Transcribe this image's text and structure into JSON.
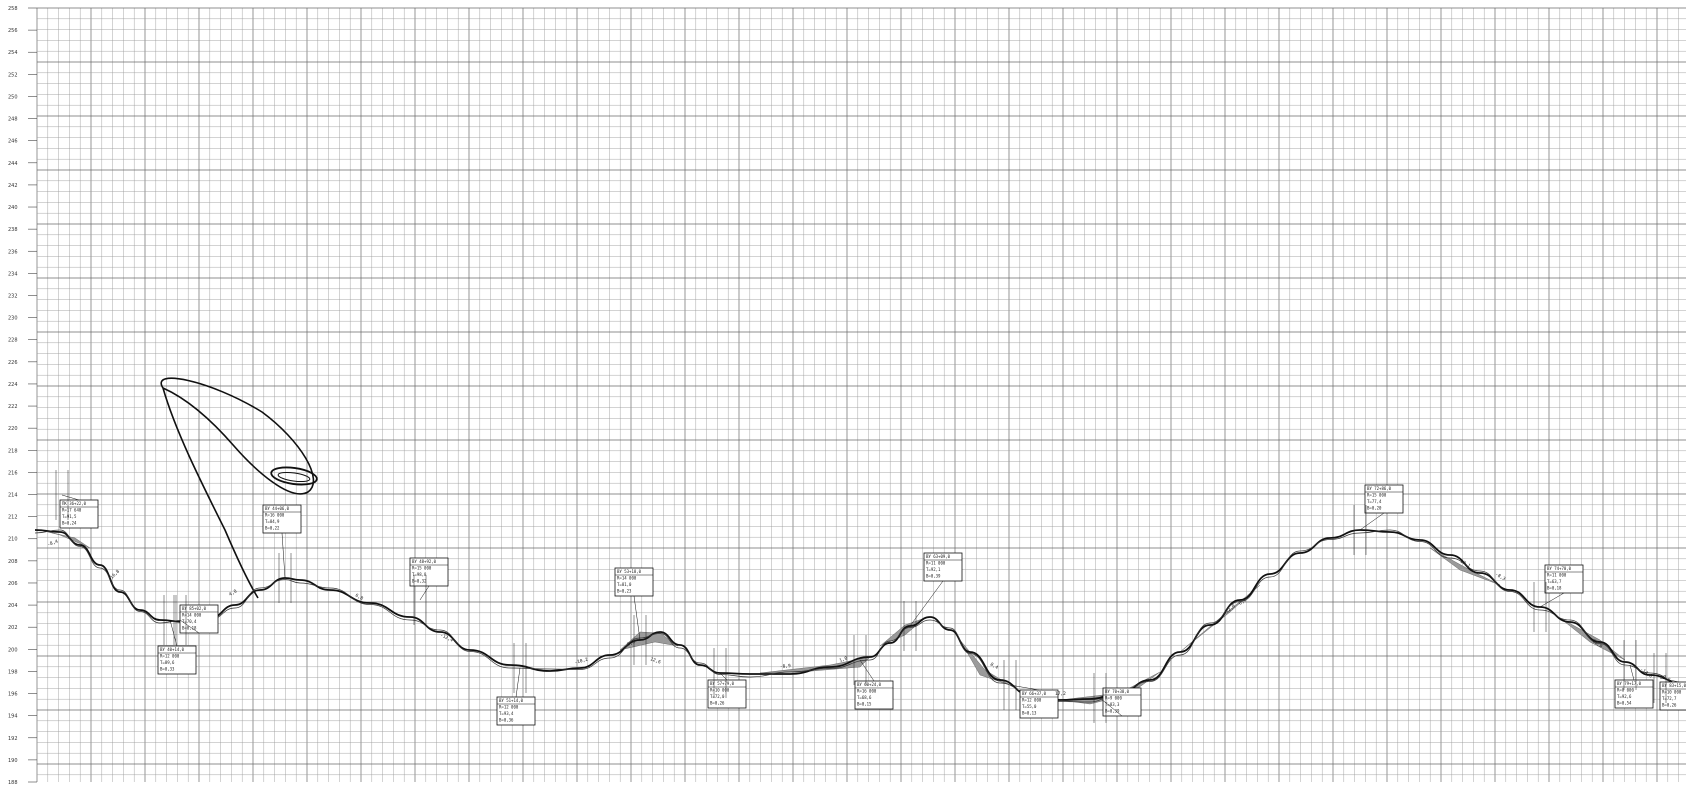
{
  "sheet": {
    "grid": true,
    "y_axis_range": [
      188,
      258
    ]
  },
  "y_ticks": [
    "258",
    "256",
    "254",
    "252",
    "250",
    "248",
    "246",
    "244",
    "242",
    "240",
    "238",
    "236",
    "234",
    "232",
    "230",
    "228",
    "226",
    "224",
    "222",
    "220",
    "218",
    "216",
    "214",
    "212",
    "210",
    "208",
    "206",
    "204",
    "202",
    "200",
    "198",
    "196",
    "194",
    "192",
    "190",
    "188"
  ],
  "profile": {
    "line_color": "#111111",
    "fill_color": "#9a9a9a"
  },
  "vertical_curves": [
    {
      "box": [
        "ПК 36+22,0",
        "R=17 640",
        "T=91,5",
        "B=0,24"
      ]
    },
    {
      "box": [
        "ВУ 40+14,0",
        "R=12 000",
        "T=89,6",
        "B=0,33"
      ]
    },
    {
      "box": [
        "ВУ 44+06,0",
        "R=16 000",
        "T=84,9",
        "B=0,22"
      ]
    },
    {
      "box": [
        "ВУ 48+92,0",
        "R=15 000",
        "T=98,8",
        "B=0,32"
      ]
    },
    {
      "box": [
        "ВУ 51+14,0",
        "R=12 000",
        "T=93,4",
        "B=0,36"
      ]
    },
    {
      "box": [
        "ВУ 53+18,0",
        "R=14 000",
        "T=81,0",
        "B=0,23"
      ]
    },
    {
      "box": [
        "ВУ 57+79,0",
        "R=10 000",
        "T=72,0",
        "B=0,26"
      ]
    },
    {
      "box": [
        "ВУ 60+24,0",
        "R=16 000",
        "T=68,6",
        "B=0,15"
      ]
    },
    {
      "box": [
        "ВУ 63+09,0",
        "R=11 000",
        "T=92,1",
        "B=0,39"
      ]
    },
    {
      "box": [
        "ВУ 66+37,0",
        "R=12 000",
        "T=55,0",
        "B=0,13"
      ]
    },
    {
      "box": [
        "ВУ 70+38,0",
        "R=9 000",
        "T=83,3",
        "B=0,39"
      ]
    },
    {
      "box": [
        "ВУ 72+86,0",
        "R=15 000",
        "T=77,4",
        "B=0,20"
      ]
    },
    {
      "box": [
        "ВУ 74+70,0",
        "R=11 000",
        "T=63,7",
        "B=0,18"
      ]
    },
    {
      "box": [
        "ВУ 79+17,0",
        "R=8 000",
        "T=92,6",
        "B=0,54"
      ]
    },
    {
      "box": [
        "ВУ 83+15,0",
        "R=10 000",
        "T=72,7",
        "B=0,26"
      ]
    },
    {
      "box": [
        "ВУ 85+02,0",
        "R=14 000",
        "T=70,4",
        "B=0,18"
      ]
    }
  ],
  "slopes": [
    "-8,4",
    "-16,8",
    "4,0",
    "6,8",
    "-12,4",
    "-10,2",
    "5,1",
    "12,6",
    "-8,9",
    "1,0",
    "8,4",
    "17,2",
    "-12,0",
    "0,6",
    "13,1",
    "-8,3",
    "-11,9",
    "-14,8",
    "-9,6"
  ]
}
